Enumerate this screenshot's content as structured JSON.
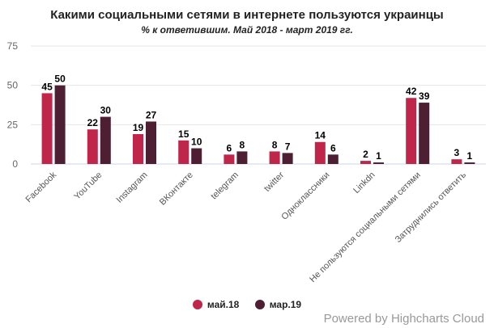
{
  "chart_data": {
    "type": "bar",
    "title": "Какими социальными сетями в интернете пользуются украинцы",
    "subtitle": "% к ответившим. Май 2018 - март 2019 гг.",
    "categories": [
      "Facebook",
      "YouTube",
      "Instagram",
      "ВКонтакте",
      "telegram",
      "twitter",
      "Одноклассники",
      "Linkdn",
      "Не пользуются социальными сетями",
      "Затруднились ответить"
    ],
    "series": [
      {
        "name": "май.18",
        "color": "#c0264a",
        "values": [
          45,
          22,
          19,
          15,
          6,
          8,
          14,
          2,
          42,
          3
        ]
      },
      {
        "name": "мар.19",
        "color": "#4e1f33",
        "values": [
          50,
          30,
          27,
          10,
          8,
          7,
          6,
          1,
          39,
          1
        ]
      }
    ],
    "ylim": [
      0,
      75
    ],
    "yticks": [
      0,
      25,
      50,
      75
    ],
    "grid": true,
    "legend": "bottom",
    "data_labels": true
  },
  "credits": "Powered by Highcharts Cloud"
}
